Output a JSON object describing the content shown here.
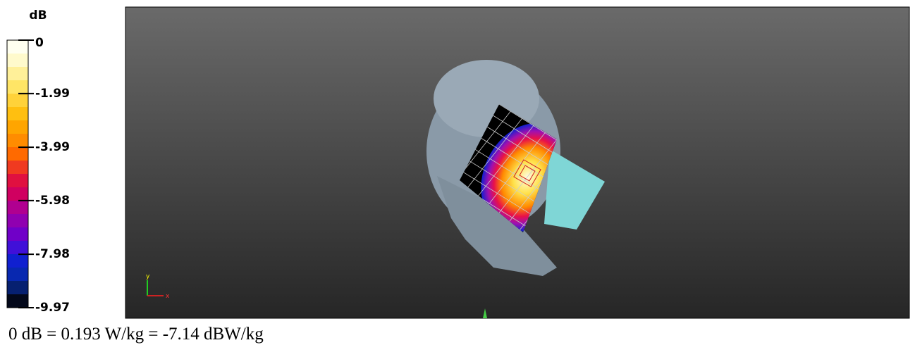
{
  "colorbar": {
    "unit": "dB",
    "ticks": [
      0,
      -1.99,
      -3.99,
      -5.98,
      -7.98,
      -9.97
    ]
  },
  "axes_triad": {
    "y": "y",
    "x": "x"
  },
  "caption": "0 dB = 0.193 W/kg = -7.14 dBW/kg"
}
